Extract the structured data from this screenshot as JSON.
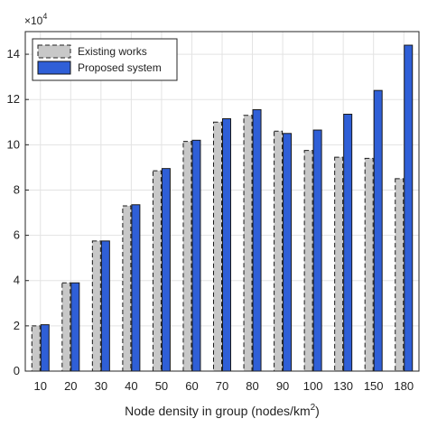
{
  "chart_data": {
    "type": "bar",
    "title": "",
    "xlabel_prefix": "Node density in group (nodes/km",
    "xlabel_sup": "2",
    "xlabel_suffix": ")",
    "ylabel": "",
    "exponent_base": "×10",
    "exponent_power": "4",
    "ylim": [
      0,
      15
    ],
    "yticks": [
      "0",
      "2",
      "4",
      "6",
      "8",
      "10",
      "12",
      "14"
    ],
    "grid": true,
    "legend_position": "top-left",
    "categories": [
      "10",
      "20",
      "30",
      "40",
      "50",
      "60",
      "70",
      "80",
      "90",
      "100",
      "130",
      "150",
      "180"
    ],
    "series": [
      {
        "name": "Existing works",
        "color": "#c8c8c8",
        "style": "dashed",
        "values": [
          2.0,
          3.9,
          5.75,
          7.3,
          8.85,
          10.15,
          11.0,
          11.3,
          10.6,
          9.75,
          9.45,
          9.4,
          8.5
        ]
      },
      {
        "name": "Proposed system",
        "color": "#2f5fd7",
        "style": "solid",
        "values": [
          2.05,
          3.9,
          5.75,
          7.35,
          8.95,
          10.2,
          11.15,
          11.55,
          10.5,
          10.65,
          11.35,
          12.4,
          14.4
        ]
      }
    ]
  }
}
